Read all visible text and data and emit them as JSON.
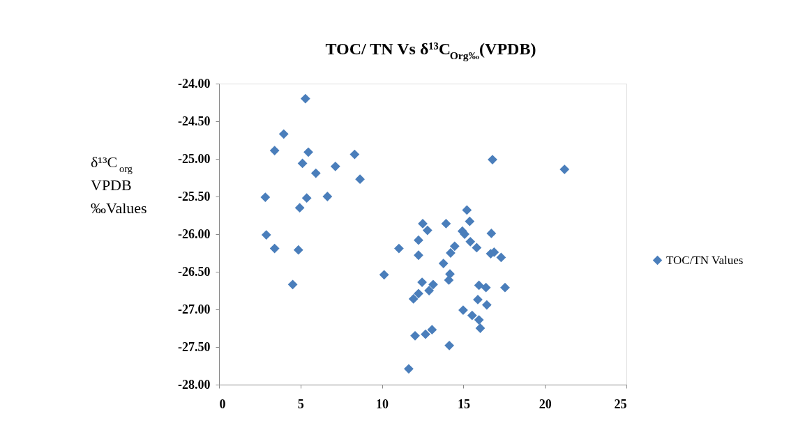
{
  "chart_data": {
    "type": "scatter",
    "title": "TOC/ TN  Vs δ¹³C$_{Org‰}$(VPDB)",
    "ylabel": "δ¹³C$_{org}$\nVPDB\n‰Values",
    "x": [
      5.3,
      3.97,
      3.41,
      5.48,
      8.32,
      5.12,
      7.14,
      5.94,
      8.65,
      2.84,
      5.38,
      6.65,
      4.95,
      2.9,
      3.41,
      4.87,
      11.04,
      4.52,
      10.13,
      11.64,
      16.78,
      21.2,
      15.21,
      15.38,
      12.5,
      12.79,
      13.93,
      16.71,
      14.93,
      15.07,
      12.24,
      15.42,
      15.81,
      14.46,
      14.21,
      12.24,
      16.67,
      16.88,
      17.31,
      13.77,
      14.17,
      14.1,
      12.46,
      13.14,
      12.89,
      15.95,
      16.38,
      17.55,
      12.24,
      11.93,
      15.88,
      16.43,
      14.98,
      15.53,
      15.95,
      16.03,
      13.07,
      12.67,
      12.03,
      14.13
    ],
    "series": [
      {
        "name": "TOC/TN Values",
        "color": "#4a7ebb",
        "values": [
          -24.2,
          -24.67,
          -24.89,
          -24.91,
          -24.94,
          -25.06,
          -25.1,
          -25.19,
          -25.27,
          -25.51,
          -25.52,
          -25.5,
          -25.65,
          -26.01,
          -26.19,
          -26.21,
          -26.19,
          -26.67,
          -26.54,
          -27.79,
          -25.01,
          -25.14,
          -25.68,
          -25.83,
          -25.86,
          -25.95,
          -25.86,
          -25.99,
          -25.96,
          -26.0,
          -26.08,
          -26.1,
          -26.18,
          -26.16,
          -26.25,
          -26.28,
          -26.26,
          -26.24,
          -26.31,
          -26.39,
          -26.53,
          -26.61,
          -26.64,
          -26.67,
          -26.75,
          -26.68,
          -26.71,
          -26.71,
          -26.79,
          -26.86,
          -26.87,
          -26.94,
          -27.01,
          -27.08,
          -27.14,
          -27.25,
          -27.27,
          -27.33,
          -27.35,
          -27.48
        ]
      }
    ],
    "xlim": [
      0,
      25
    ],
    "xticks": [
      0,
      5,
      10,
      15,
      20,
      25
    ],
    "ylim": [
      -28,
      -24
    ],
    "yticks": [
      {
        "value": -28,
        "label": "-28.00"
      },
      {
        "value": -27.5,
        "label": "-27.50"
      },
      {
        "value": -27,
        "label": "-27.00"
      },
      {
        "value": -26.5,
        "label": "-26.50"
      },
      {
        "value": -26,
        "label": "-26.00"
      },
      {
        "value": -25.5,
        "label": "-25.50"
      },
      {
        "value": -25,
        "label": "-25.00"
      },
      {
        "value": -24.5,
        "label": "-24.50"
      },
      {
        "value": -24,
        "label": "-24.00"
      }
    ],
    "marker": "diamond",
    "grid": false,
    "legend": "right"
  }
}
